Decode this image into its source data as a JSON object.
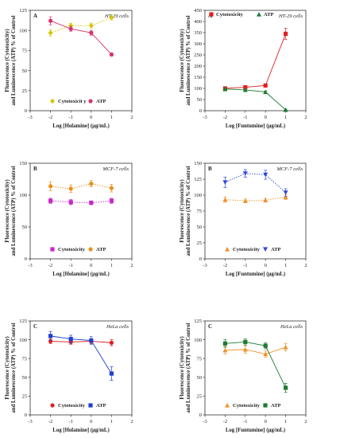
{
  "chart_data": [
    {
      "type": "line",
      "panel_letter": "A",
      "cell_label": "HT-29 cells",
      "xlabel": "Log [Holamine] (μg/mL)",
      "ylabel_line1": "Fluorescence (Cytotoxicity)",
      "ylabel_line2": "and Luminescence (ATP) % of Control",
      "xlim": [
        -3,
        2
      ],
      "ylim": [
        0,
        125
      ],
      "xticks": [
        "-3",
        "-2",
        "-1",
        "0",
        "1",
        "2"
      ],
      "yticks": [
        "0",
        "25",
        "50",
        "75",
        "100",
        "125"
      ],
      "legend_position": "bottom",
      "series": [
        {
          "name": "Cytotoxicit y",
          "color": "#d4c400",
          "marker": "diamond",
          "line": "dotted",
          "x": [
            -2,
            -1,
            0,
            1
          ],
          "y": [
            97,
            106,
            106,
            116
          ],
          "err": [
            4,
            3,
            3,
            3
          ]
        },
        {
          "name": "ATP",
          "color": "#d6336c",
          "marker": "circle",
          "line": "solid",
          "x": [
            -2,
            -1,
            0,
            1
          ],
          "y": [
            112,
            102,
            97,
            70
          ],
          "err": [
            5,
            3,
            3,
            2
          ]
        }
      ]
    },
    {
      "type": "line",
      "panel_letter": "A",
      "cell_label": "HT-29 cells",
      "xlabel": "Log [Funtumine] (μg/mL)",
      "ylabel_line1": "Fluorescence (Cytotoxicity)",
      "ylabel_line2": "and Luminescence (ATP) % of Control",
      "xlim": [
        -3,
        2
      ],
      "ylim": [
        0,
        450
      ],
      "xticks": [
        "-3",
        "-2",
        "-1",
        "0",
        "1",
        "2"
      ],
      "yticks": [
        "0",
        "50",
        "100",
        "150",
        "200",
        "250",
        "300",
        "350",
        "400",
        "450"
      ],
      "legend_position": "top",
      "series": [
        {
          "name": "Cytotoxicity",
          "color": "#e02020",
          "marker": "square",
          "line": "solid",
          "x": [
            -2,
            -1,
            0,
            1
          ],
          "y": [
            100,
            105,
            113,
            345
          ],
          "err": [
            5,
            5,
            6,
            25
          ]
        },
        {
          "name": "ATP",
          "color": "#1e7a32",
          "marker": "triangle",
          "line": "solid",
          "x": [
            -2,
            -1,
            0,
            1
          ],
          "y": [
            97,
            93,
            84,
            4
          ],
          "err": [
            4,
            4,
            5,
            2
          ]
        }
      ]
    },
    {
      "type": "line",
      "panel_letter": "B",
      "cell_label": "MCF-7 cells",
      "xlabel": "Log [Holamine] (μg/mL)",
      "ylabel_line1": "Fluorescence (Cytotoxicity)",
      "ylabel_line2": "and Luminescence (ATP) % of Control",
      "xlim": [
        -3,
        2
      ],
      "ylim": [
        0,
        150
      ],
      "xticks": [
        "-3",
        "-2",
        "-1",
        "0",
        "1",
        "2"
      ],
      "yticks": [
        "0",
        "50",
        "100",
        "150"
      ],
      "legend_position": "bottom",
      "series": [
        {
          "name": "Cytotoxicity",
          "color": "#c828c8",
          "marker": "square",
          "line": "dotted",
          "x": [
            -2,
            -1,
            0,
            1
          ],
          "y": [
            91,
            89,
            88,
            91
          ],
          "err": [
            4,
            4,
            3,
            4
          ]
        },
        {
          "name": "ATP",
          "color": "#e8901a",
          "marker": "circle",
          "line": "dotted",
          "x": [
            -2,
            -1,
            0,
            1
          ],
          "y": [
            114,
            110,
            118,
            111
          ],
          "err": [
            7,
            6,
            5,
            6
          ]
        }
      ]
    },
    {
      "type": "line",
      "panel_letter": "B",
      "cell_label": "MCF-7 cells",
      "xlabel": "Log [Funtumine] (μg/mL)",
      "ylabel_line1": "Fluorescence (Cytotoxicity)",
      "ylabel_line2": "and Luminescence (ATP) % of Control",
      "xlim": [
        -3,
        2
      ],
      "ylim": [
        0,
        150
      ],
      "xticks": [
        "-3",
        "-2",
        "-1",
        "0",
        "1",
        "2"
      ],
      "yticks": [
        "0",
        "25",
        "50",
        "75",
        "100",
        "125",
        "150"
      ],
      "legend_position": "bottom",
      "series": [
        {
          "name": "Cytotoxicity",
          "color": "#f0922b",
          "marker": "triangle",
          "line": "dotted",
          "x": [
            -2,
            -1,
            0,
            1
          ],
          "y": [
            93,
            91,
            92,
            97
          ],
          "err": [
            4,
            3,
            3,
            4
          ]
        },
        {
          "name": "ATP",
          "color": "#3048d8",
          "marker": "triangle-down",
          "line": "dotted",
          "x": [
            -2,
            -1,
            0,
            1
          ],
          "y": [
            120,
            134,
            132,
            104
          ],
          "err": [
            8,
            6,
            7,
            6
          ]
        }
      ]
    },
    {
      "type": "line",
      "panel_letter": "C",
      "cell_label": "HeLa cells",
      "xlabel": "Log [Holamine] (μg/mL)",
      "ylabel_line1": "Fluorescence (Cytotoxicity)",
      "ylabel_line2": "and Luminescence (ATP) % of Control",
      "xlim": [
        -3,
        2
      ],
      "ylim": [
        0,
        125
      ],
      "xticks": [
        "-3",
        "-2",
        "-1",
        "0",
        "1",
        "2"
      ],
      "yticks": [
        "0",
        "25",
        "50",
        "75",
        "100",
        "125"
      ],
      "legend_position": "bottom",
      "series": [
        {
          "name": "Cytotoxicity",
          "color": "#e02020",
          "marker": "circle",
          "line": "solid",
          "x": [
            -2,
            -1,
            0,
            1
          ],
          "y": [
            98,
            97,
            98,
            96
          ],
          "err": [
            3,
            3,
            3,
            4
          ]
        },
        {
          "name": "ATP",
          "color": "#1f3fd0",
          "marker": "square",
          "line": "solid",
          "x": [
            -2,
            -1,
            0,
            1
          ],
          "y": [
            105,
            101,
            99,
            55
          ],
          "err": [
            6,
            5,
            5,
            9
          ]
        }
      ]
    },
    {
      "type": "line",
      "panel_letter": "C",
      "cell_label": "HeLa cells",
      "xlabel": "Log [Funtumine] (μg/mL)",
      "ylabel_line1": "Fluorescence (Cytotoxicity)",
      "ylabel_line2": "and Luminescence (ATP) % of Control",
      "xlim": [
        -3,
        2
      ],
      "ylim": [
        0,
        125
      ],
      "xticks": [
        "-3",
        "-2",
        "-1",
        "0",
        "1",
        "2"
      ],
      "yticks": [
        "0",
        "25",
        "50",
        "75",
        "100",
        "125"
      ],
      "legend_position": "bottom",
      "series": [
        {
          "name": "Cytotoxicity",
          "color": "#f0922b",
          "marker": "triangle",
          "line": "solid",
          "x": [
            -2,
            -1,
            0,
            1
          ],
          "y": [
            86,
            87,
            81,
            90
          ],
          "err": [
            5,
            5,
            4,
            5
          ]
        },
        {
          "name": "ATP",
          "color": "#1e7a32",
          "marker": "square",
          "line": "solid",
          "x": [
            -2,
            -1,
            0,
            1
          ],
          "y": [
            95,
            97,
            92,
            36
          ],
          "err": [
            5,
            4,
            4,
            6
          ]
        }
      ]
    }
  ]
}
